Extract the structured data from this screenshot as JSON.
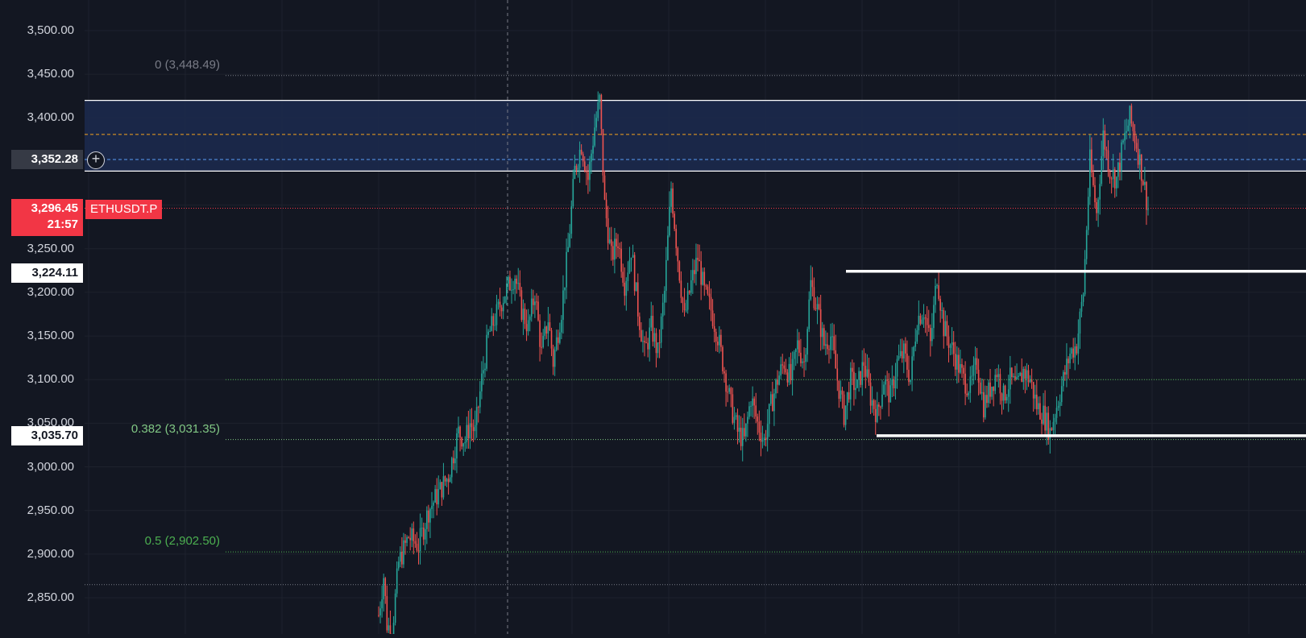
{
  "symbol": "ETHUSDT.P",
  "price_axis": {
    "ticks": [
      "3,500.00",
      "3,450.00",
      "3,400.00",
      "3,350.00",
      "3,300.00",
      "3,250.00",
      "3,200.00",
      "3,150.00",
      "3,100.00",
      "3,050.00",
      "3,000.00",
      "2,950.00",
      "2,900.00",
      "2,850.00"
    ],
    "tick_values": [
      3500,
      3450,
      3400,
      3350,
      3300,
      3250,
      3200,
      3150,
      3100,
      3050,
      3000,
      2950,
      2900,
      2850
    ]
  },
  "price_labels": {
    "cursor_price": "3,352.28",
    "current_price": "3,296.45",
    "countdown": "21:57",
    "range_high_label": "3,224.11",
    "range_low_label": "3,035.70"
  },
  "fib_levels": [
    {
      "label": "0 (3,448.49)",
      "price": 3448.49,
      "color": "#787b86"
    },
    {
      "label": "0.382 (3,031.35)",
      "price": 3031.35,
      "color": "#81c784"
    },
    {
      "label": "0.5 (2,902.50)",
      "price": 2902.5,
      "color": "#4caf50"
    }
  ],
  "colors": {
    "background": "#131722",
    "up": "#26a69a",
    "down": "#ef5350",
    "zone": "#1c2a4f",
    "orange_line": "#f7a21b",
    "blue_line": "#5b9cf6"
  },
  "chart_data": {
    "type": "candlestick",
    "ylim": [
      2820,
      3530
    ],
    "zone": {
      "top": 3420,
      "bottom": 3339
    },
    "zone_orange_line": 3381,
    "zone_blue_line": 3352.28,
    "current_price": 3296.45,
    "range_high": 3224.11,
    "range_low": 3035.7,
    "dotted_level_extra": 2865,
    "dotted_level_3100": 3100,
    "close_path": [
      [
        0,
        2830
      ],
      [
        3,
        2875
      ],
      [
        5,
        2820
      ],
      [
        8,
        2810
      ],
      [
        12,
        2890
      ],
      [
        18,
        2920
      ],
      [
        24,
        2910
      ],
      [
        30,
        2950
      ],
      [
        36,
        2970
      ],
      [
        42,
        2990
      ],
      [
        48,
        3040
      ],
      [
        52,
        3030
      ],
      [
        55,
        3050
      ],
      [
        58,
        3040
      ],
      [
        62,
        3100
      ],
      [
        66,
        3150
      ],
      [
        70,
        3170
      ],
      [
        76,
        3200
      ],
      [
        82,
        3220
      ],
      [
        86,
        3180
      ],
      [
        90,
        3160
      ],
      [
        94,
        3200
      ],
      [
        98,
        3130
      ],
      [
        102,
        3170
      ],
      [
        105,
        3120
      ],
      [
        110,
        3180
      ],
      [
        114,
        3250
      ],
      [
        118,
        3340
      ],
      [
        122,
        3370
      ],
      [
        126,
        3330
      ],
      [
        130,
        3390
      ],
      [
        133,
        3420
      ],
      [
        136,
        3300
      ],
      [
        140,
        3240
      ],
      [
        144,
        3260
      ],
      [
        148,
        3210
      ],
      [
        152,
        3250
      ],
      [
        156,
        3180
      ],
      [
        160,
        3130
      ],
      [
        164,
        3160
      ],
      [
        168,
        3130
      ],
      [
        172,
        3200
      ],
      [
        176,
        3320
      ],
      [
        180,
        3240
      ],
      [
        184,
        3170
      ],
      [
        188,
        3210
      ],
      [
        192,
        3240
      ],
      [
        196,
        3200
      ],
      [
        200,
        3180
      ],
      [
        204,
        3150
      ],
      [
        208,
        3110
      ],
      [
        212,
        3070
      ],
      [
        216,
        3040
      ],
      [
        220,
        3030
      ],
      [
        224,
        3080
      ],
      [
        228,
        3050
      ],
      [
        232,
        3030
      ],
      [
        236,
        3070
      ],
      [
        240,
        3100
      ],
      [
        244,
        3120
      ],
      [
        248,
        3100
      ],
      [
        252,
        3140
      ],
      [
        256,
        3120
      ],
      [
        260,
        3210
      ],
      [
        264,
        3180
      ],
      [
        268,
        3140
      ],
      [
        272,
        3150
      ],
      [
        276,
        3100
      ],
      [
        280,
        3060
      ],
      [
        284,
        3100
      ],
      [
        288,
        3090
      ],
      [
        292,
        3120
      ],
      [
        296,
        3080
      ],
      [
        300,
        3060
      ],
      [
        304,
        3100
      ],
      [
        308,
        3080
      ],
      [
        312,
        3120
      ],
      [
        316,
        3130
      ],
      [
        320,
        3100
      ],
      [
        324,
        3170
      ],
      [
        328,
        3180
      ],
      [
        332,
        3140
      ],
      [
        336,
        3220
      ],
      [
        340,
        3160
      ],
      [
        344,
        3140
      ],
      [
        348,
        3120
      ],
      [
        352,
        3100
      ],
      [
        356,
        3090
      ],
      [
        360,
        3120
      ],
      [
        364,
        3070
      ],
      [
        368,
        3090
      ],
      [
        372,
        3110
      ],
      [
        376,
        3080
      ],
      [
        380,
        3100
      ],
      [
        384,
        3090
      ],
      [
        388,
        3110
      ],
      [
        392,
        3100
      ],
      [
        396,
        3070
      ],
      [
        400,
        3060
      ],
      [
        404,
        3040
      ],
      [
        408,
        3070
      ],
      [
        412,
        3100
      ],
      [
        416,
        3130
      ],
      [
        420,
        3140
      ],
      [
        424,
        3200
      ],
      [
        428,
        3350
      ],
      [
        432,
        3290
      ],
      [
        436,
        3380
      ],
      [
        440,
        3340
      ],
      [
        444,
        3330
      ],
      [
        448,
        3370
      ],
      [
        452,
        3400
      ],
      [
        456,
        3370
      ],
      [
        460,
        3330
      ],
      [
        463,
        3296
      ]
    ]
  }
}
